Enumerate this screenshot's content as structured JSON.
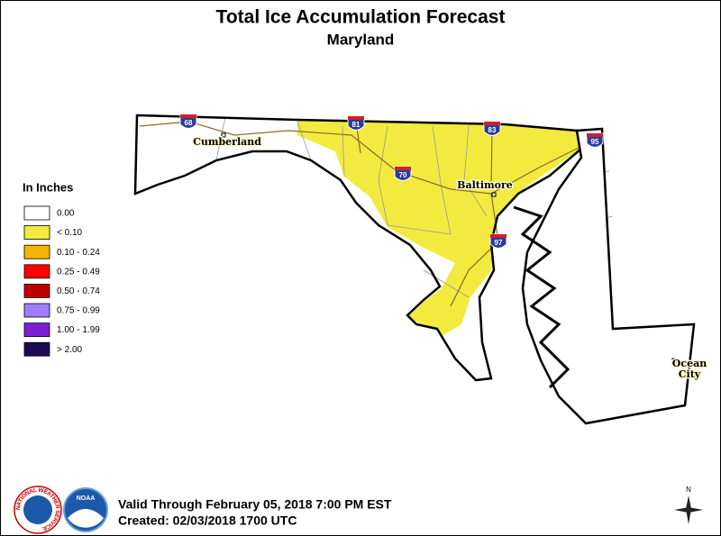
{
  "header": {
    "title": "Total Ice Accumulation Forecast",
    "subtitle": "Maryland"
  },
  "legend": {
    "title": "In Inches",
    "items": [
      {
        "label": "0.00",
        "color": "#ffffff"
      },
      {
        "label": "< 0.10",
        "color": "#f2ea3f"
      },
      {
        "label": "0.10 - 0.24",
        "color": "#f5b400"
      },
      {
        "label": "0.25 - 0.49",
        "color": "#ff0000"
      },
      {
        "label": "0.50 - 0.74",
        "color": "#c00000"
      },
      {
        "label": "0.75 - 0.99",
        "color": "#a07cff"
      },
      {
        "label": "1.00 - 1.99",
        "color": "#7a1fd6"
      },
      {
        "label": "> 2.00",
        "color": "#1e0a55"
      }
    ]
  },
  "map": {
    "cities": [
      {
        "lines": [
          "Cumberland"
        ]
      },
      {
        "lines": [
          "Baltimore"
        ]
      },
      {
        "lines": [
          "Ocean",
          "City"
        ]
      }
    ],
    "interstates": [
      "68",
      "81",
      "83",
      "95",
      "70",
      "97"
    ]
  },
  "footer": {
    "valid": "Valid Through February 05, 2018 7:00 PM EST",
    "created": "Created: 02/03/2018 1700 UTC"
  },
  "logos": {
    "nws": "NATIONAL WEATHER SERVICE",
    "noaa": "NOAA"
  },
  "compass": "N"
}
